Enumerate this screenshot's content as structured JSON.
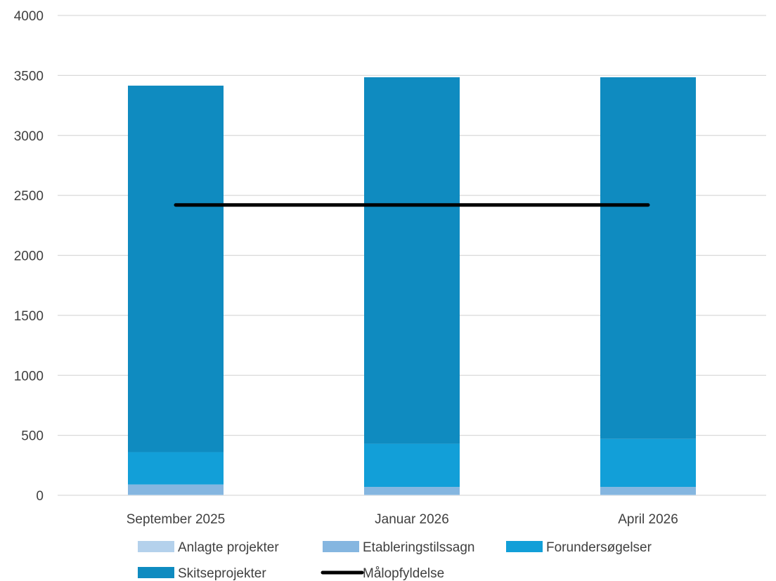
{
  "chart_data": {
    "type": "bar",
    "stacked": true,
    "title": "",
    "xlabel": "",
    "ylabel": "",
    "ylim": [
      0,
      4000
    ],
    "yticks": [
      0,
      500,
      1000,
      1500,
      2000,
      2500,
      3000,
      3500,
      4000
    ],
    "grid": true,
    "legend_position": "bottom",
    "categories": [
      "September 2025",
      "Januar 2026",
      "April 2026"
    ],
    "series": [
      {
        "name": "Anlagte projekter",
        "type": "bar",
        "color": "#b4d1ec",
        "values": [
          5,
          5,
          5
        ]
      },
      {
        "name": "Etableringstilssagn",
        "type": "bar",
        "color": "#85b6e0",
        "values": [
          85,
          65,
          65
        ]
      },
      {
        "name": "Forundersøgelser",
        "type": "bar",
        "color": "#129fd8",
        "values": [
          270,
          360,
          400
        ]
      },
      {
        "name": "Skitseprojekter",
        "type": "bar",
        "color": "#0f8bc0",
        "values": [
          3055,
          3055,
          3015
        ]
      },
      {
        "name": "Målopfyldelse",
        "type": "line",
        "color": "#000000",
        "values": [
          2420,
          2420,
          2420
        ]
      }
    ]
  }
}
